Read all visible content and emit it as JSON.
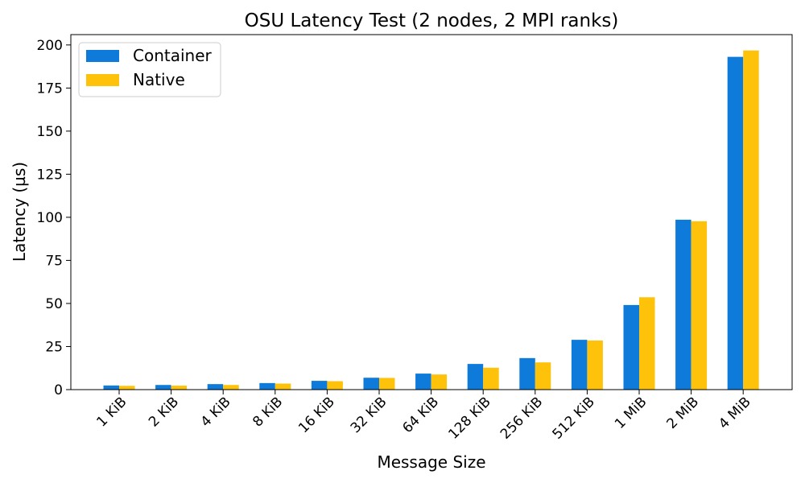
{
  "chart_data": {
    "type": "bar",
    "title": "OSU Latency Test (2 nodes, 2 MPI ranks)",
    "xlabel": "Message Size",
    "ylabel": "Latency (µs)",
    "ylim": [
      0,
      206
    ],
    "yticks": [
      0,
      25,
      50,
      75,
      100,
      125,
      150,
      175,
      200
    ],
    "grid": false,
    "legend_position": "top-left",
    "categories": [
      "1 KiB",
      "2 KiB",
      "4 KiB",
      "8 KiB",
      "16 KiB",
      "32 KiB",
      "64 KiB",
      "128 KiB",
      "256 KiB",
      "512 KiB",
      "1 MiB",
      "2 MiB",
      "4 MiB"
    ],
    "series": [
      {
        "name": "Container",
        "color": "#0e7ada",
        "values": [
          2.4,
          2.7,
          3.2,
          3.8,
          5.1,
          6.9,
          9.3,
          14.9,
          18.3,
          28.9,
          49.1,
          98.6,
          193.1
        ]
      },
      {
        "name": "Native",
        "color": "#fec20b",
        "values": [
          2.2,
          2.3,
          2.7,
          3.5,
          4.9,
          6.8,
          8.8,
          12.7,
          15.8,
          28.5,
          53.6,
          97.7,
          196.8
        ]
      }
    ]
  }
}
